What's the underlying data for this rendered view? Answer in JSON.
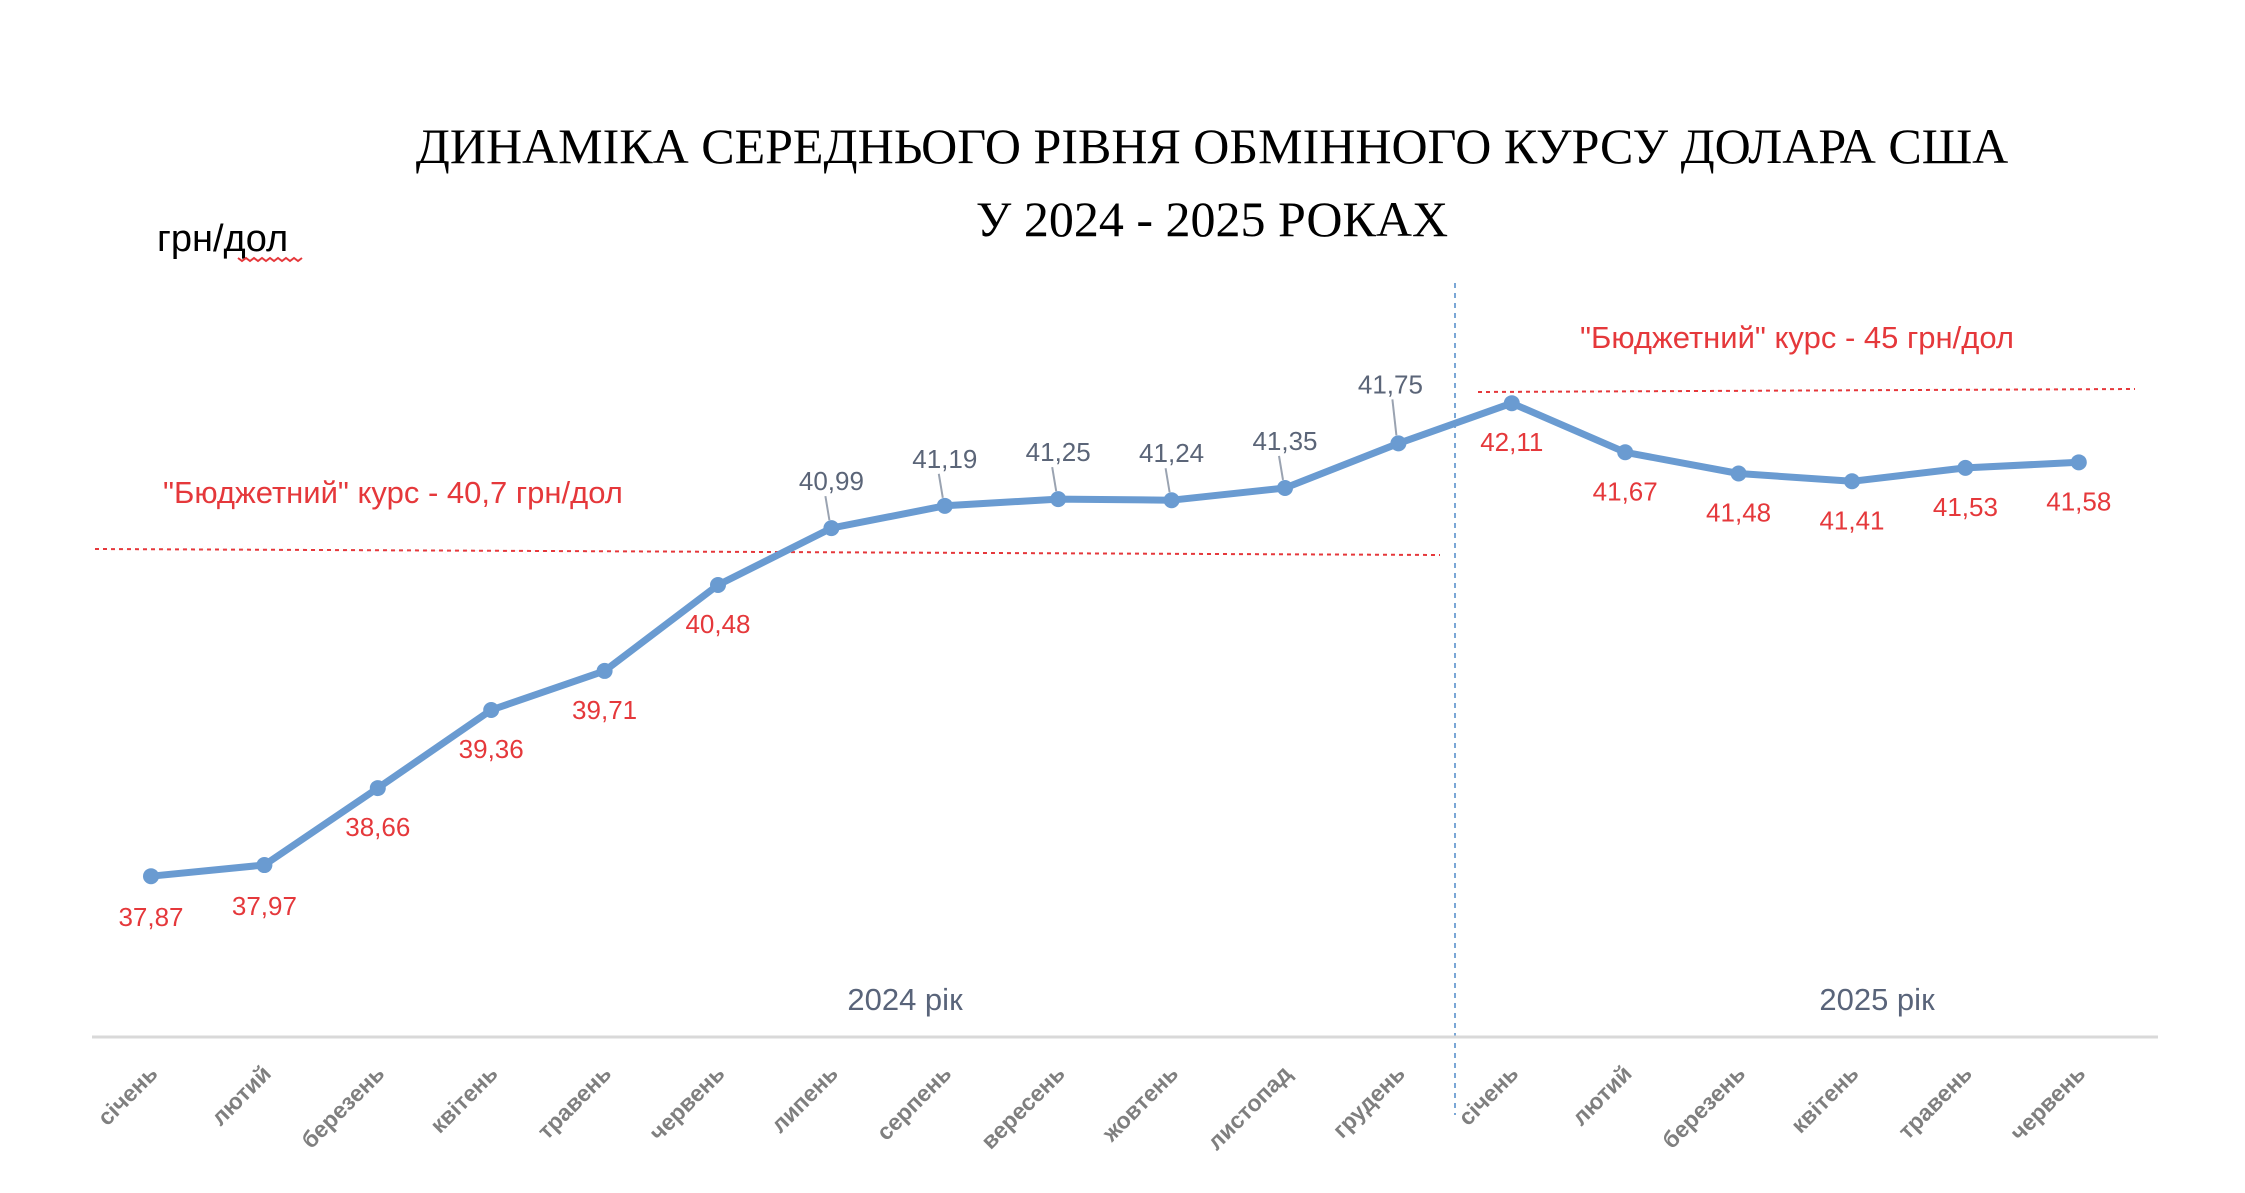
{
  "chart_data": {
    "type": "line",
    "title_line1": "ДИНАМІКА СЕРЕДНЬОГО РІВНЯ ОБМІННОГО КУРСУ ДОЛАРА США",
    "title_line2": "У 2024 - 2025 РОКАХ",
    "ylabel": "грн/дол",
    "categories": [
      "січень",
      "лютий",
      "березень",
      "квітень",
      "травень",
      "червень",
      "липень",
      "серпень",
      "вересень",
      "жовтень",
      "листопад",
      "грудень",
      "січень",
      "лютий",
      "березень",
      "квітень",
      "травень",
      "червень"
    ],
    "values": [
      37.87,
      37.97,
      38.66,
      39.36,
      39.71,
      40.48,
      40.99,
      41.19,
      41.25,
      41.24,
      41.35,
      41.75,
      42.11,
      41.67,
      41.48,
      41.41,
      41.53,
      41.58
    ],
    "value_labels": [
      "37,87",
      "37,97",
      "38,66",
      "39,36",
      "39,71",
      "40,48",
      "40,99",
      "41,19",
      "41,25",
      "41,24",
      "41,35",
      "41,75",
      "42,11",
      "41,67",
      "41,48",
      "41,41",
      "41,53",
      "41,58"
    ],
    "ylim": [
      36.2,
      43.9
    ],
    "year_labels": [
      "2024 рік",
      "2025 рік"
    ],
    "budget_rates": [
      {
        "label": "\"Бюджетний\" курс - 40,7 грн/дол",
        "value": 40.7,
        "period": "2024"
      },
      {
        "label": "\"Бюджетний\" курс - 45 грн/дол",
        "value": 45,
        "period": "2025"
      }
    ],
    "grid": false,
    "colors": {
      "line": "#6a9bd1",
      "budget": "#e5383b",
      "year_divider": "#7aa7d6",
      "axis": "#d9d9d9",
      "label_gray": "#5b6578"
    }
  }
}
